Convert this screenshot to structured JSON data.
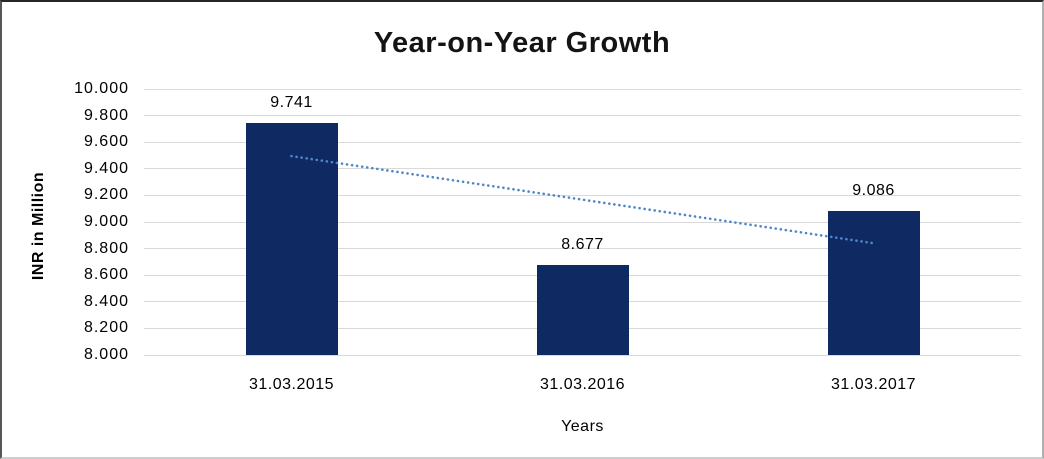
{
  "chart_data": {
    "type": "bar",
    "title": "Year-on-Year Growth",
    "xlabel": "Years",
    "ylabel": "INR in Million",
    "categories": [
      "31.03.2015",
      "31.03.2016",
      "31.03.2017"
    ],
    "values": [
      9.741,
      8.677,
      9.086
    ],
    "value_labels": [
      "9.741",
      "8.677",
      "9.086"
    ],
    "ylim": [
      8.0,
      10.0
    ],
    "ytick_step": 0.2,
    "ytick_labels": [
      "8.000",
      "8.200",
      "8.400",
      "8.600",
      "8.800",
      "9.000",
      "9.200",
      "9.400",
      "9.600",
      "9.800",
      "10.000"
    ],
    "grid": true,
    "legend": false,
    "colors": {
      "bar": "#0f2a63",
      "trendline": "#4e86c8",
      "gridline": "#d9d9d9",
      "text": "#000000"
    },
    "trendline": {
      "type": "linear",
      "style": "dotted",
      "start_value": 9.4955,
      "end_value": 8.8405
    }
  }
}
